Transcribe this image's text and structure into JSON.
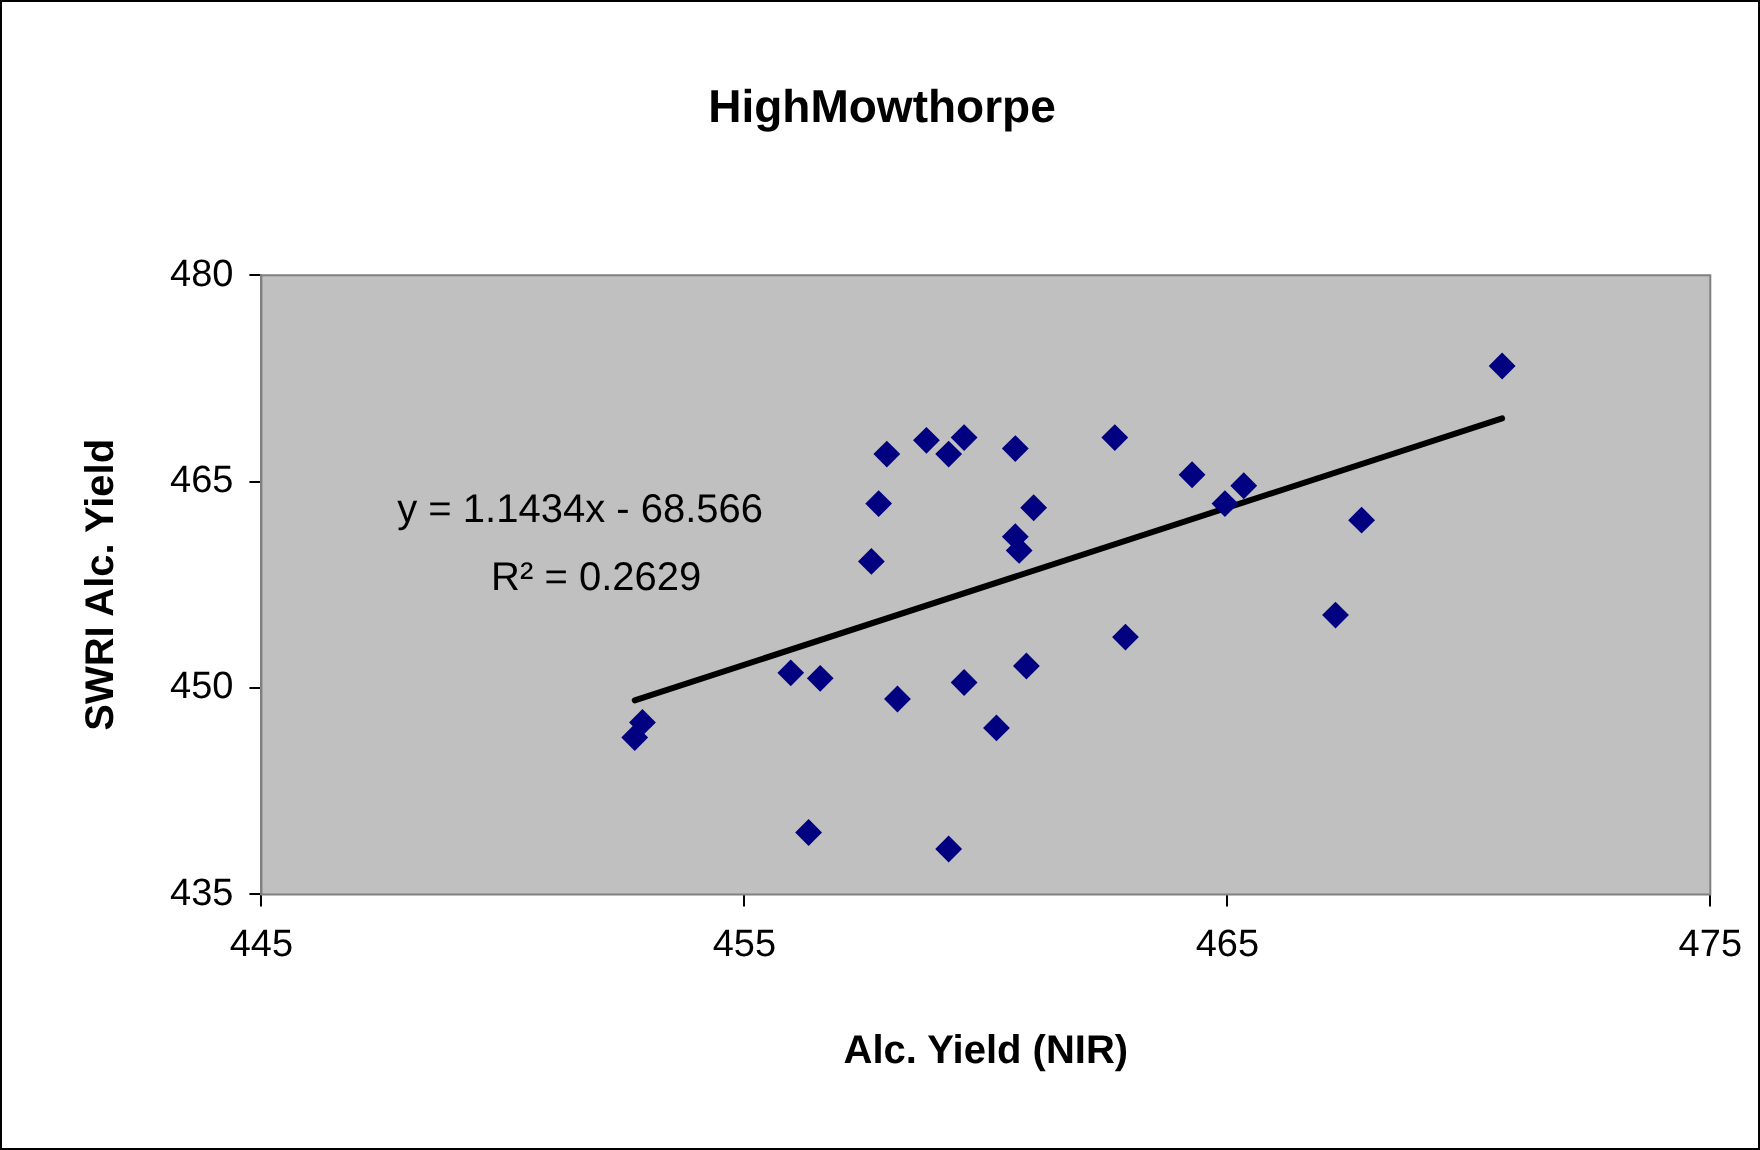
{
  "chart_data": {
    "type": "scatter",
    "title": "HighMowthorpe",
    "xlabel": "Alc. Yield (NIR)",
    "ylabel": "SWRI Alc. Yield",
    "x": [
      452.73,
      452.89,
      457.95,
      458.77,
      459.23,
      459.55,
      460.61,
      457.78,
      460.99,
      457.63,
      460.61,
      460.69,
      455.96,
      456.57,
      458.17,
      459.55,
      460.84,
      460.22,
      456.33,
      459.23,
      462.67,
      464.27,
      464.95,
      465.34,
      467.78,
      470.69,
      462.89,
      467.24
    ],
    "series": [
      {
        "type": "scatter",
        "color": "#000080",
        "values": [
          446.4,
          447.5,
          467.0,
          468.0,
          467.0,
          468.2,
          467.4,
          463.4,
          463.1,
          459.2,
          461.0,
          460.0,
          451.1,
          450.7,
          449.2,
          450.4,
          451.6,
          447.1,
          439.5,
          438.3,
          468.2,
          465.5,
          463.4,
          464.7,
          462.2,
          473.4,
          453.7,
          455.3
        ]
      },
      {
        "type": "line",
        "color": "#000000",
        "marker": "none",
        "x": [
          452.73,
          470.69
        ],
        "values": [
          449.1,
          469.6
        ]
      }
    ],
    "annotations": [
      "y = 1.1434x - 68.566",
      "R² = 0.2629"
    ],
    "xlim": [
      445,
      475
    ],
    "xticks": [
      445,
      455,
      465,
      475
    ],
    "ylim": [
      435,
      480
    ],
    "yticks": [
      435,
      450,
      465,
      480
    ],
    "grid": false,
    "legend": false,
    "marker": "diamond",
    "line_style": "solid"
  }
}
